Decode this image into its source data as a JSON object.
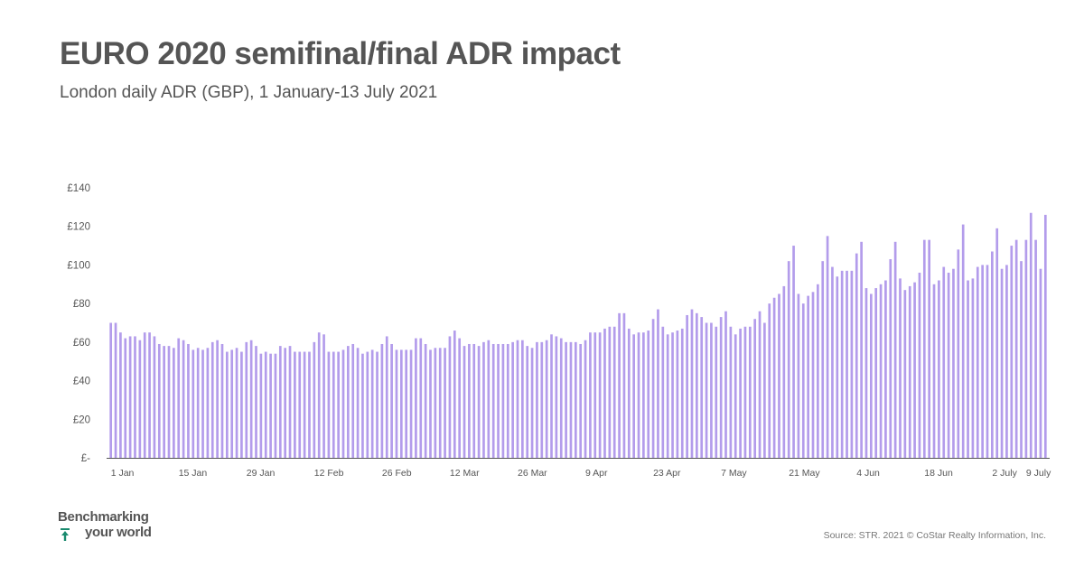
{
  "header": {
    "title": "EURO 2020 semifinal/final ADR impact",
    "subtitle": "London daily ADR (GBP), 1 January-13 July 2021"
  },
  "footer": {
    "logo_line1": "Benchmarking",
    "logo_line2": "your world",
    "source": "Source: STR. 2021 © CoStar Realty Information, Inc."
  },
  "colors": {
    "bar": "#b39ceb",
    "text": "#555555",
    "axis": "#555555"
  },
  "chart_data": {
    "type": "bar",
    "title": "EURO 2020 semifinal/final ADR impact",
    "subtitle": "London daily ADR (GBP), 1 January-13 July 2021",
    "xlabel": "",
    "ylabel": "",
    "ylim": [
      0,
      140
    ],
    "yticks": [
      {
        "value": 0,
        "label": "£-"
      },
      {
        "value": 20,
        "label": "£20"
      },
      {
        "value": 40,
        "label": "£40"
      },
      {
        "value": 60,
        "label": "£60"
      },
      {
        "value": 80,
        "label": "£80"
      },
      {
        "value": 100,
        "label": "£100"
      },
      {
        "value": 120,
        "label": "£120"
      },
      {
        "value": 140,
        "label": "£140"
      }
    ],
    "xtick_labels": [
      {
        "label": "1 Jan",
        "index": 0
      },
      {
        "label": "15 Jan",
        "index": 14
      },
      {
        "label": "29 Jan",
        "index": 28
      },
      {
        "label": "12 Feb",
        "index": 42
      },
      {
        "label": "26 Feb",
        "index": 56
      },
      {
        "label": "12 Mar",
        "index": 70
      },
      {
        "label": "26 Mar",
        "index": 84
      },
      {
        "label": "9 Apr",
        "index": 98
      },
      {
        "label": "23 Apr",
        "index": 112
      },
      {
        "label": "7 May",
        "index": 126
      },
      {
        "label": "21 May",
        "index": 140
      },
      {
        "label": "4 Jun",
        "index": 154
      },
      {
        "label": "18 Jun",
        "index": 168
      },
      {
        "label": "2 July",
        "index": 182
      },
      {
        "label": "9 July",
        "index": 189
      }
    ],
    "grid": false,
    "legend": "none",
    "x_start": "2021-01-01",
    "x_end": "2021-07-13",
    "values": [
      70,
      70,
      65,
      62,
      63,
      63,
      61,
      65,
      65,
      63,
      59,
      58,
      58,
      57,
      62,
      61,
      59,
      56,
      57,
      56,
      57,
      60,
      61,
      59,
      55,
      56,
      57,
      55,
      60,
      61,
      58,
      54,
      55,
      54,
      54,
      58,
      57,
      58,
      55,
      55,
      55,
      55,
      60,
      65,
      64,
      55,
      55,
      55,
      56,
      58,
      59,
      57,
      54,
      55,
      56,
      55,
      59,
      63,
      59,
      56,
      56,
      56,
      56,
      62,
      62,
      59,
      56,
      57,
      57,
      57,
      63,
      66,
      62,
      58,
      59,
      59,
      58,
      60,
      61,
      59,
      59,
      59,
      59,
      60,
      61,
      61,
      58,
      57,
      60,
      60,
      61,
      64,
      63,
      62,
      60,
      60,
      60,
      59,
      61,
      65,
      65,
      65,
      67,
      68,
      68,
      75,
      75,
      67,
      64,
      65,
      65,
      66,
      72,
      77,
      68,
      64,
      65,
      66,
      67,
      74,
      77,
      75,
      73,
      70,
      70,
      68,
      73,
      76,
      68,
      64,
      67,
      68,
      68,
      72,
      76,
      70,
      80,
      83,
      85,
      89,
      102,
      110,
      85,
      80,
      84,
      86,
      90,
      102,
      115,
      99,
      94,
      97,
      97,
      97,
      106,
      112,
      88,
      85,
      88,
      90,
      92,
      103,
      112,
      93,
      87,
      89,
      91,
      96,
      113,
      113,
      90,
      92,
      99,
      96,
      98,
      108,
      121,
      92,
      93,
      99,
      100,
      100,
      107,
      119,
      98,
      100,
      110,
      113,
      102,
      113,
      127,
      113,
      98,
      126
    ]
  }
}
